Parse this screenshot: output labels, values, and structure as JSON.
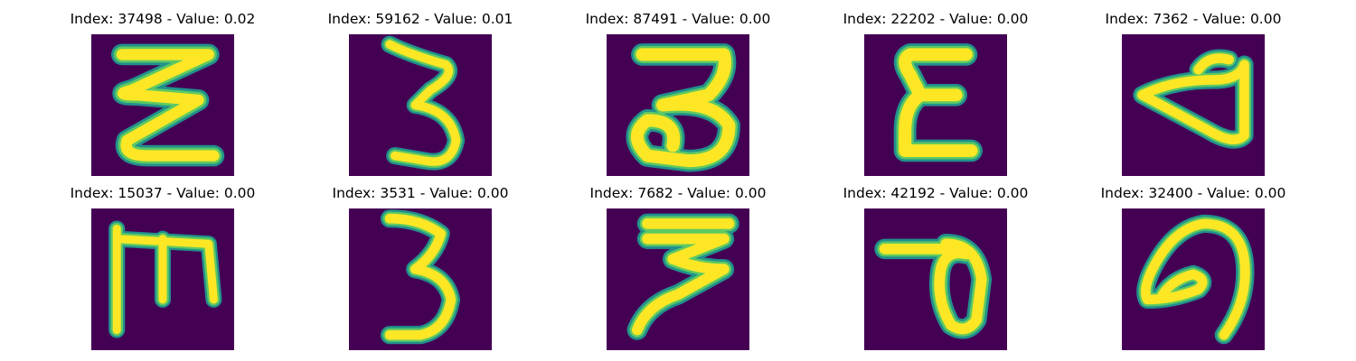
{
  "colors": {
    "background": "#440154",
    "stroke_outer": "#21918c",
    "stroke_mid": "#5ec962",
    "stroke_core": "#fde725"
  },
  "panels": [
    {
      "title": "Index: 37498 - Value: 0.02",
      "glyph": "wavy-z"
    },
    {
      "title": "Index: 59162 - Value: 0.01",
      "glyph": "thin-three"
    },
    {
      "title": "Index: 87491 - Value: 0.00",
      "glyph": "flat-top-three"
    },
    {
      "title": "Index: 22202 - Value: 0.00",
      "glyph": "epsilon"
    },
    {
      "title": "Index: 7362 - Value: 0.00",
      "glyph": "rotated-d"
    },
    {
      "title": "Index: 15037 - Value: 0.00",
      "glyph": "sideways-m"
    },
    {
      "title": "Index: 3531 - Value: 0.00",
      "glyph": "three"
    },
    {
      "title": "Index: 7682 - Value: 0.00",
      "glyph": "slanted-three"
    },
    {
      "title": "Index: 42192 - Value: 0.00",
      "glyph": "p-loop"
    },
    {
      "title": "Index: 32400 - Value: 0.00",
      "glyph": "curl"
    }
  ]
}
